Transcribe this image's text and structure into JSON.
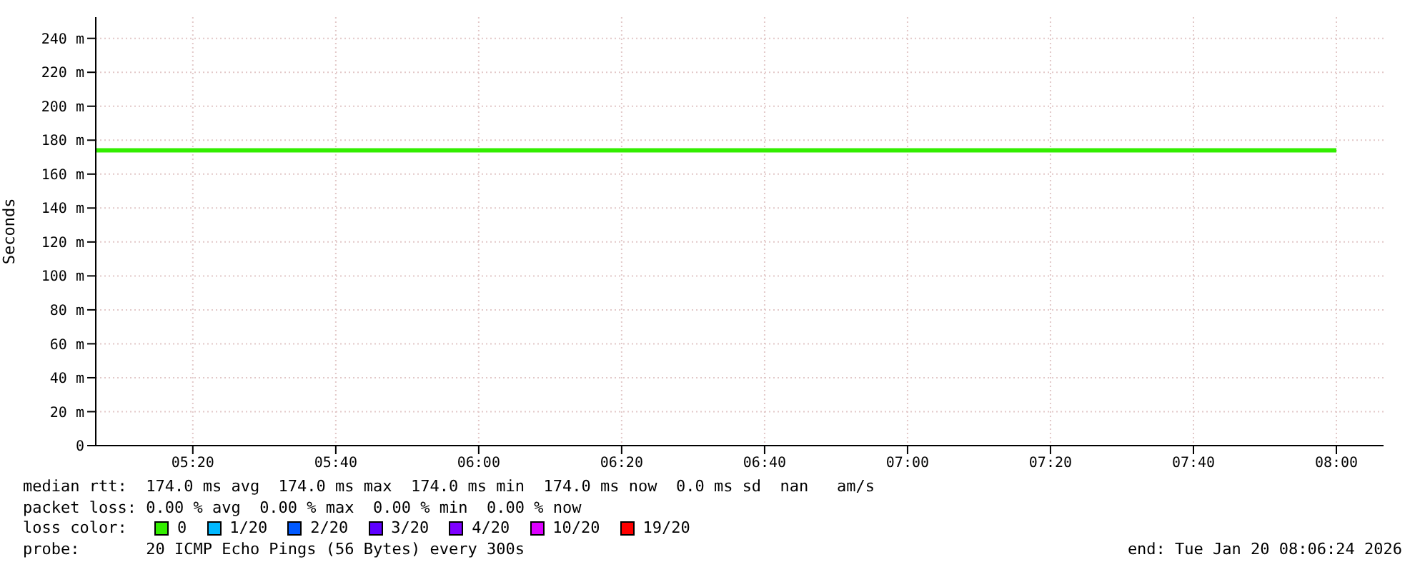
{
  "chart_data": {
    "type": "line",
    "ylabel": "Seconds",
    "legend_title": "loss color:",
    "x": [
      5.107,
      8.0
    ],
    "series": [
      {
        "name": "0",
        "color": "#33ee00",
        "values": [
          174,
          174
        ]
      },
      {
        "name": "1/20",
        "color": "#00b8ff",
        "values": [
          null,
          null
        ]
      },
      {
        "name": "2/20",
        "color": "#0059ff",
        "values": [
          null,
          null
        ]
      },
      {
        "name": "3/20",
        "color": "#5e00ff",
        "values": [
          null,
          null
        ]
      },
      {
        "name": "4/20",
        "color": "#7e00ff",
        "values": [
          null,
          null
        ]
      },
      {
        "name": "10/20",
        "color": "#dd00ff",
        "values": [
          null,
          null
        ]
      },
      {
        "name": "19/20",
        "color": "#ff0000",
        "values": [
          null,
          null
        ]
      }
    ],
    "xlim": [
      5.107,
      8.11
    ],
    "xticks": [
      {
        "value": 5.3333,
        "label": "05:20"
      },
      {
        "value": 5.6667,
        "label": "05:40"
      },
      {
        "value": 6,
        "label": "06:00"
      },
      {
        "value": 6.3333,
        "label": "06:20"
      },
      {
        "value": 6.6667,
        "label": "06:40"
      },
      {
        "value": 7,
        "label": "07:00"
      },
      {
        "value": 7.3333,
        "label": "07:20"
      },
      {
        "value": 7.6667,
        "label": "07:40"
      },
      {
        "value": 8,
        "label": "08:00"
      }
    ],
    "ylim": [
      0,
      252.5
    ],
    "yticks": [
      0,
      {
        "value": 20,
        "label": "20 m"
      },
      {
        "value": 40,
        "label": "40 m"
      },
      {
        "value": 60,
        "label": "60 m"
      },
      {
        "value": 80,
        "label": "80 m"
      },
      {
        "value": 100,
        "label": "100 m"
      },
      {
        "value": 120,
        "label": "120 m"
      },
      {
        "value": 140,
        "label": "140 m"
      },
      {
        "value": 160,
        "label": "160 m"
      },
      {
        "value": 180,
        "label": "180 m"
      },
      {
        "value": 200,
        "label": "200 m"
      },
      {
        "value": 220,
        "label": "220 m"
      },
      {
        "value": 240,
        "label": "240 m"
      }
    ],
    "grid": true,
    "legend": "bottom",
    "marker": "none",
    "line_style": "solid",
    "annotations": [
      "median rtt:  174.0 ms avg  174.0 ms max  174.0 ms min  174.0 ms now  0.0 ms sd  nan   am/s",
      "packet loss: 0.00 % avg  0.00 % max  0.00 % min  0.00 % now",
      "probe:       20 ICMP Echo Pings (56 Bytes) every 300s",
      "end: Tue Jan 20 08:06:24 2026"
    ]
  }
}
